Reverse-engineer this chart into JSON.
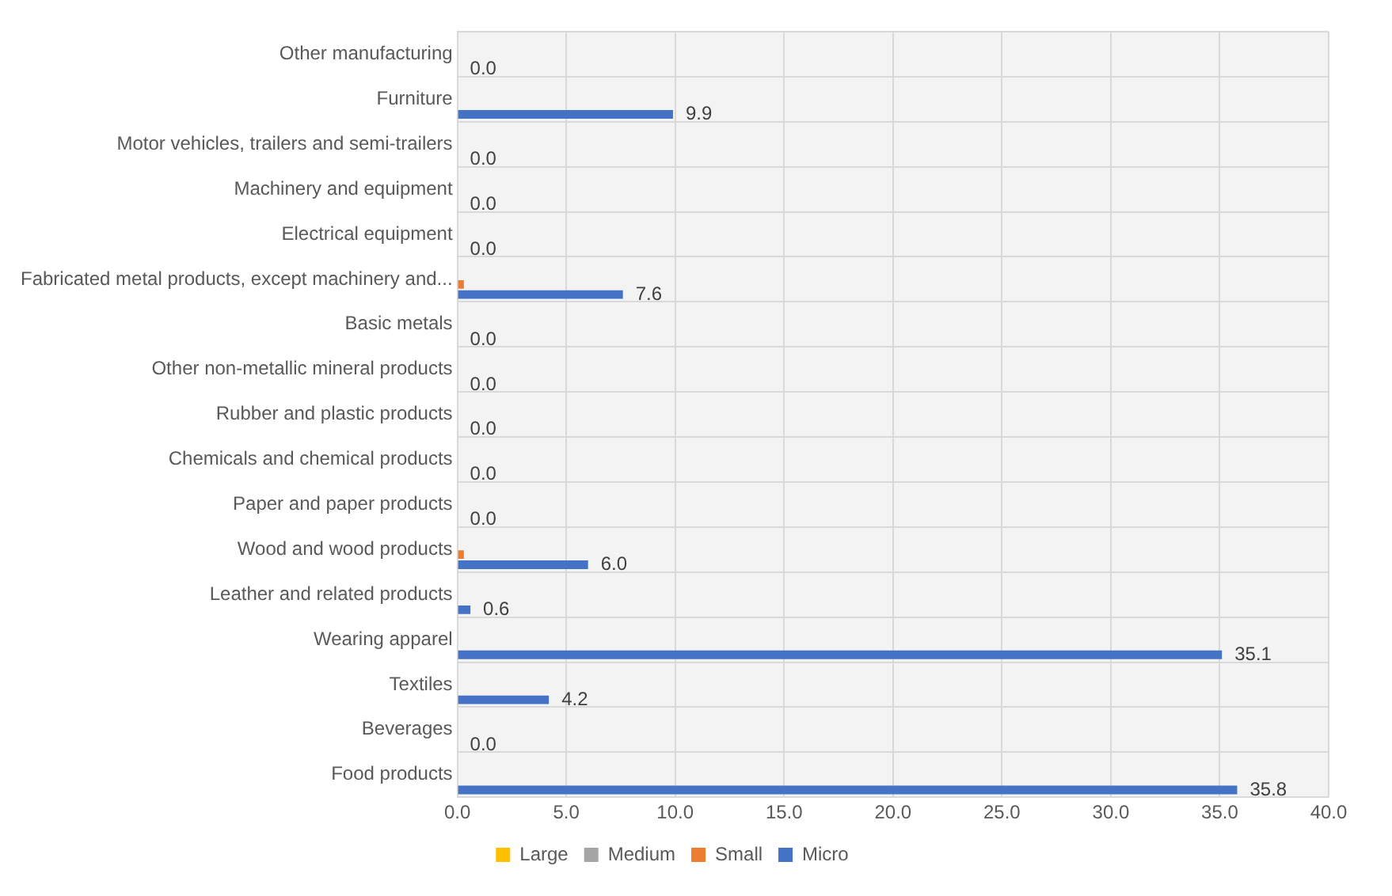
{
  "chart_data": {
    "type": "bar",
    "orientation": "horizontal",
    "categories": [
      "Other manufacturing",
      "Furniture",
      "Motor vehicles, trailers and semi-trailers",
      "Machinery and equipment",
      "Electrical equipment",
      "Fabricated metal products, except machinery and...",
      "Basic metals",
      "Other non-metallic mineral products",
      "Rubber and plastic products",
      "Chemicals and chemical products",
      "Paper and paper products",
      "Wood and wood products",
      "Leather and related products",
      "Wearing apparel",
      "Textiles",
      "Beverages",
      "Food products"
    ],
    "series": [
      {
        "name": "Large",
        "color": "#ffc000",
        "values": [
          0,
          0,
          0,
          0,
          0,
          0,
          0,
          0,
          0,
          0,
          0,
          0,
          0,
          0,
          0,
          0,
          0
        ]
      },
      {
        "name": "Medium",
        "color": "#a5a5a5",
        "values": [
          0,
          0,
          0,
          0,
          0,
          0,
          0,
          0,
          0,
          0,
          0,
          0,
          0,
          0,
          0,
          0,
          0
        ]
      },
      {
        "name": "Small",
        "color": "#ed7d31",
        "values": [
          0,
          0,
          0,
          0,
          0,
          0.3,
          0,
          0,
          0,
          0,
          0,
          0.3,
          0,
          0,
          0,
          0,
          0
        ]
      },
      {
        "name": "Micro",
        "color": "#4472c4",
        "values": [
          0.0,
          9.9,
          0.0,
          0.0,
          0.0,
          7.6,
          0.0,
          0.0,
          0.0,
          0.0,
          0.0,
          6.0,
          0.6,
          35.1,
          4.2,
          0.0,
          35.8
        ],
        "value_labels": [
          "0.0",
          "9.9",
          "0.0",
          "0.0",
          "0.0",
          "7.6",
          "0.0",
          "0.0",
          "0.0",
          "0.0",
          "0.0",
          "6.0",
          "0.6",
          "35.1",
          "4.2",
          "0.0",
          "35.8"
        ]
      }
    ],
    "xlim": [
      0,
      40
    ],
    "xticks": [
      {
        "value": 0,
        "label": "0.0"
      },
      {
        "value": 5,
        "label": "5.0"
      },
      {
        "value": 10,
        "label": "10.0"
      },
      {
        "value": 15,
        "label": "15.0"
      },
      {
        "value": 20,
        "label": "20.0"
      },
      {
        "value": 25,
        "label": "25.0"
      },
      {
        "value": 30,
        "label": "30.0"
      },
      {
        "value": 35,
        "label": "35.0"
      },
      {
        "value": 40,
        "label": "40.0"
      }
    ],
    "grid": true,
    "legend": "bottom"
  }
}
